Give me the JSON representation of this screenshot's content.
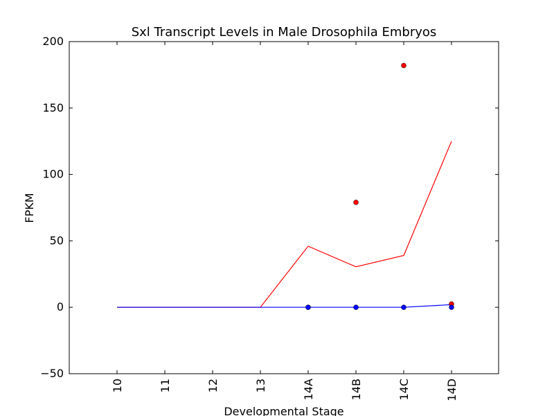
{
  "chart_data": {
    "type": "line",
    "title": "Sxl Transcript Levels in Male Drosophila Embryos",
    "xlabel": "Developmental Stage",
    "ylabel": "FPKM",
    "categories": [
      "10",
      "11",
      "12",
      "13",
      "14A",
      "14B",
      "14C",
      "14D"
    ],
    "ylim": [
      -50,
      200
    ],
    "yticks": [
      -50,
      0,
      50,
      100,
      150,
      200
    ],
    "grid": false,
    "series": [
      {
        "color": "#ff0000",
        "line": [
          0,
          0,
          0,
          0,
          46,
          30.5,
          39,
          125
        ],
        "points": [
          {
            "category": "14A",
            "value": 0
          },
          {
            "category": "14B",
            "value": 79
          },
          {
            "category": "14C",
            "value": 182
          },
          {
            "category": "14D",
            "value": 2.5
          }
        ]
      },
      {
        "color": "#0000ff",
        "line": [
          0,
          0,
          0,
          0,
          0,
          0,
          0,
          2
        ],
        "points": [
          {
            "category": "14A",
            "value": 0
          },
          {
            "category": "14B",
            "value": 0
          },
          {
            "category": "14C",
            "value": 0
          },
          {
            "category": "14D",
            "value": 0
          }
        ]
      }
    ]
  }
}
